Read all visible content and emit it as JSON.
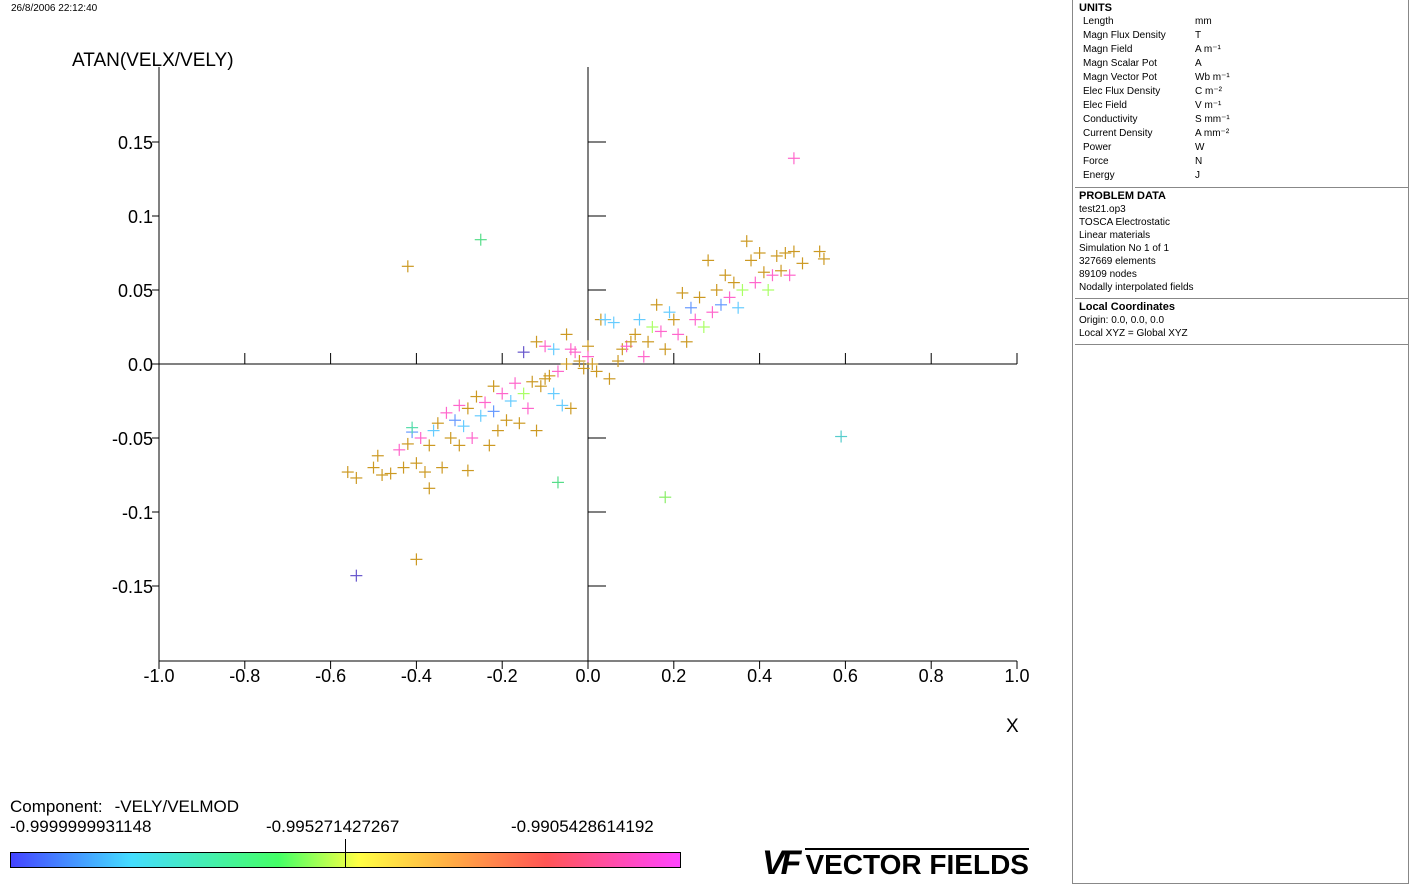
{
  "header": {
    "timestamp": "26/8/2006 22:12:40"
  },
  "chart_data": {
    "type": "scatter",
    "xlabel": "X",
    "ylabel": "ATAN(VELX/VELY)",
    "xlim": [
      -1.0,
      1.0
    ],
    "ylim": [
      -0.2,
      0.2
    ],
    "xticks": [
      "-1.0",
      "-0.8",
      "-0.6",
      "-0.4",
      "-0.2",
      "0.0",
      "0.2",
      "0.4",
      "0.6",
      "0.8",
      "1.0"
    ],
    "yticks": [
      "0.15",
      "0.1",
      "0.05",
      "0.0",
      "-0.05",
      "-0.1",
      "-0.15"
    ],
    "ytick_values": [
      0.15,
      0.1,
      0.05,
      0.0,
      -0.05,
      -0.1,
      -0.15
    ],
    "xtick_values": [
      -1.0,
      -0.8,
      -0.6,
      -0.4,
      -0.2,
      0.0,
      0.2,
      0.4,
      0.6,
      0.8,
      1.0
    ],
    "marker": "plus",
    "points": [
      {
        "x": -0.56,
        "y": -0.073,
        "c": "#cc9922"
      },
      {
        "x": -0.54,
        "y": -0.077,
        "c": "#cc9922"
      },
      {
        "x": -0.5,
        "y": -0.07,
        "c": "#cc9922"
      },
      {
        "x": -0.49,
        "y": -0.062,
        "c": "#cc9922"
      },
      {
        "x": -0.48,
        "y": -0.075,
        "c": "#cc9922"
      },
      {
        "x": -0.46,
        "y": -0.074,
        "c": "#cc9922"
      },
      {
        "x": -0.44,
        "y": -0.058,
        "c": "#ff66cc"
      },
      {
        "x": -0.43,
        "y": -0.07,
        "c": "#cc9922"
      },
      {
        "x": -0.42,
        "y": -0.054,
        "c": "#cc9922"
      },
      {
        "x": -0.41,
        "y": -0.046,
        "c": "#6699ff"
      },
      {
        "x": -0.41,
        "y": -0.043,
        "c": "#55ddaa"
      },
      {
        "x": -0.4,
        "y": -0.067,
        "c": "#cc9922"
      },
      {
        "x": -0.39,
        "y": -0.05,
        "c": "#ff66cc"
      },
      {
        "x": -0.38,
        "y": -0.073,
        "c": "#cc9922"
      },
      {
        "x": -0.37,
        "y": -0.084,
        "c": "#cc9922"
      },
      {
        "x": -0.37,
        "y": -0.055,
        "c": "#cc9922"
      },
      {
        "x": -0.36,
        "y": -0.045,
        "c": "#66ccff"
      },
      {
        "x": -0.35,
        "y": -0.04,
        "c": "#cc9922"
      },
      {
        "x": -0.34,
        "y": -0.07,
        "c": "#cc9922"
      },
      {
        "x": -0.33,
        "y": -0.033,
        "c": "#ff66cc"
      },
      {
        "x": -0.32,
        "y": -0.05,
        "c": "#cc9922"
      },
      {
        "x": -0.31,
        "y": -0.038,
        "c": "#6699ff"
      },
      {
        "x": -0.3,
        "y": -0.028,
        "c": "#ff66cc"
      },
      {
        "x": -0.3,
        "y": -0.055,
        "c": "#cc9922"
      },
      {
        "x": -0.29,
        "y": -0.042,
        "c": "#66ccff"
      },
      {
        "x": -0.28,
        "y": -0.072,
        "c": "#cc9922"
      },
      {
        "x": -0.28,
        "y": -0.03,
        "c": "#cc9922"
      },
      {
        "x": -0.27,
        "y": -0.05,
        "c": "#ff66cc"
      },
      {
        "x": -0.26,
        "y": -0.022,
        "c": "#cc9922"
      },
      {
        "x": -0.25,
        "y": -0.035,
        "c": "#66ccff"
      },
      {
        "x": -0.24,
        "y": -0.026,
        "c": "#ff66cc"
      },
      {
        "x": -0.23,
        "y": -0.055,
        "c": "#cc9922"
      },
      {
        "x": -0.22,
        "y": -0.015,
        "c": "#cc9922"
      },
      {
        "x": -0.22,
        "y": -0.032,
        "c": "#6699ff"
      },
      {
        "x": -0.21,
        "y": -0.045,
        "c": "#cc9922"
      },
      {
        "x": -0.2,
        "y": -0.02,
        "c": "#ff66cc"
      },
      {
        "x": -0.19,
        "y": -0.038,
        "c": "#cc9922"
      },
      {
        "x": -0.18,
        "y": -0.025,
        "c": "#66ccff"
      },
      {
        "x": -0.17,
        "y": -0.013,
        "c": "#ff66cc"
      },
      {
        "x": -0.16,
        "y": -0.04,
        "c": "#cc9922"
      },
      {
        "x": -0.15,
        "y": -0.02,
        "c": "#aaff66"
      },
      {
        "x": -0.14,
        "y": -0.03,
        "c": "#ff66cc"
      },
      {
        "x": -0.13,
        "y": -0.012,
        "c": "#cc9922"
      },
      {
        "x": -0.12,
        "y": -0.045,
        "c": "#cc9922"
      },
      {
        "x": -0.11,
        "y": -0.015,
        "c": "#cc9922"
      },
      {
        "x": -0.1,
        "y": -0.01,
        "c": "#cc9922"
      },
      {
        "x": -0.09,
        "y": -0.008,
        "c": "#cc9922"
      },
      {
        "x": -0.08,
        "y": -0.02,
        "c": "#66ccff"
      },
      {
        "x": -0.07,
        "y": -0.005,
        "c": "#ff66cc"
      },
      {
        "x": -0.06,
        "y": -0.028,
        "c": "#66ccff"
      },
      {
        "x": -0.05,
        "y": 0.0,
        "c": "#cc9922"
      },
      {
        "x": -0.04,
        "y": -0.03,
        "c": "#cc9922"
      },
      {
        "x": -0.03,
        "y": 0.008,
        "c": "#ff66cc"
      },
      {
        "x": -0.02,
        "y": 0.002,
        "c": "#cc9922"
      },
      {
        "x": -0.15,
        "y": 0.008,
        "c": "#6655cc"
      },
      {
        "x": -0.12,
        "y": 0.015,
        "c": "#cc9922"
      },
      {
        "x": -0.1,
        "y": 0.012,
        "c": "#ff66cc"
      },
      {
        "x": -0.08,
        "y": 0.01,
        "c": "#66ccff"
      },
      {
        "x": -0.05,
        "y": 0.02,
        "c": "#cc9922"
      },
      {
        "x": -0.04,
        "y": 0.01,
        "c": "#ff66cc"
      },
      {
        "x": 0.01,
        "y": 0.0,
        "c": "#cc9922"
      },
      {
        "x": 0.02,
        "y": -0.005,
        "c": "#cc9922"
      },
      {
        "x": 0.03,
        "y": 0.03,
        "c": "#cc9922"
      },
      {
        "x": 0.04,
        "y": 0.03,
        "c": "#66ccff"
      },
      {
        "x": 0.05,
        "y": -0.01,
        "c": "#cc9922"
      },
      {
        "x": 0.06,
        "y": 0.028,
        "c": "#66ccff"
      },
      {
        "x": 0.07,
        "y": 0.002,
        "c": "#cc9922"
      },
      {
        "x": 0.08,
        "y": 0.01,
        "c": "#cc9922"
      },
      {
        "x": 0.09,
        "y": 0.012,
        "c": "#ff66cc"
      },
      {
        "x": 0.1,
        "y": 0.015,
        "c": "#cc9922"
      },
      {
        "x": 0.11,
        "y": 0.02,
        "c": "#cc9922"
      },
      {
        "x": 0.12,
        "y": 0.03,
        "c": "#66ccff"
      },
      {
        "x": 0.13,
        "y": 0.005,
        "c": "#ff66cc"
      },
      {
        "x": 0.14,
        "y": 0.015,
        "c": "#cc9922"
      },
      {
        "x": 0.15,
        "y": 0.025,
        "c": "#aaff66"
      },
      {
        "x": 0.16,
        "y": 0.04,
        "c": "#cc9922"
      },
      {
        "x": 0.17,
        "y": 0.022,
        "c": "#ff66cc"
      },
      {
        "x": 0.18,
        "y": 0.01,
        "c": "#cc9922"
      },
      {
        "x": 0.19,
        "y": 0.035,
        "c": "#66ccff"
      },
      {
        "x": 0.2,
        "y": 0.03,
        "c": "#cc9922"
      },
      {
        "x": 0.21,
        "y": 0.02,
        "c": "#ff66cc"
      },
      {
        "x": 0.22,
        "y": 0.048,
        "c": "#cc9922"
      },
      {
        "x": 0.23,
        "y": 0.015,
        "c": "#cc9922"
      },
      {
        "x": 0.24,
        "y": 0.038,
        "c": "#6699ff"
      },
      {
        "x": 0.25,
        "y": 0.03,
        "c": "#ff66cc"
      },
      {
        "x": 0.26,
        "y": 0.045,
        "c": "#cc9922"
      },
      {
        "x": 0.27,
        "y": 0.025,
        "c": "#aaff66"
      },
      {
        "x": 0.28,
        "y": 0.07,
        "c": "#cc9922"
      },
      {
        "x": 0.29,
        "y": 0.035,
        "c": "#ff66cc"
      },
      {
        "x": 0.3,
        "y": 0.05,
        "c": "#cc9922"
      },
      {
        "x": 0.31,
        "y": 0.04,
        "c": "#6699ff"
      },
      {
        "x": 0.32,
        "y": 0.06,
        "c": "#cc9922"
      },
      {
        "x": 0.33,
        "y": 0.045,
        "c": "#ff66cc"
      },
      {
        "x": 0.34,
        "y": 0.055,
        "c": "#cc9922"
      },
      {
        "x": 0.35,
        "y": 0.038,
        "c": "#66ccff"
      },
      {
        "x": 0.36,
        "y": 0.05,
        "c": "#aaff66"
      },
      {
        "x": 0.37,
        "y": 0.083,
        "c": "#cc9922"
      },
      {
        "x": 0.38,
        "y": 0.07,
        "c": "#cc9922"
      },
      {
        "x": 0.39,
        "y": 0.055,
        "c": "#ff66cc"
      },
      {
        "x": 0.4,
        "y": 0.075,
        "c": "#cc9922"
      },
      {
        "x": 0.41,
        "y": 0.062,
        "c": "#cc9922"
      },
      {
        "x": 0.42,
        "y": 0.05,
        "c": "#aaff66"
      },
      {
        "x": 0.43,
        "y": 0.06,
        "c": "#ff66cc"
      },
      {
        "x": 0.44,
        "y": 0.073,
        "c": "#cc9922"
      },
      {
        "x": 0.45,
        "y": 0.063,
        "c": "#cc9922"
      },
      {
        "x": 0.46,
        "y": 0.075,
        "c": "#cc9922"
      },
      {
        "x": 0.47,
        "y": 0.06,
        "c": "#ff66cc"
      },
      {
        "x": 0.48,
        "y": 0.076,
        "c": "#cc9922"
      },
      {
        "x": 0.5,
        "y": 0.068,
        "c": "#cc9922"
      },
      {
        "x": 0.54,
        "y": 0.076,
        "c": "#cc9922"
      },
      {
        "x": 0.55,
        "y": 0.071,
        "c": "#cc9922"
      },
      {
        "x": 0.0,
        "y": 0.012,
        "c": "#cc9922"
      },
      {
        "x": 0.0,
        "y": 0.005,
        "c": "#ff66cc"
      },
      {
        "x": -0.01,
        "y": -0.003,
        "c": "#cc9922"
      },
      {
        "x": -0.42,
        "y": 0.066,
        "c": "#cc9922"
      },
      {
        "x": -0.25,
        "y": 0.084,
        "c": "#55dd88"
      },
      {
        "x": 0.48,
        "y": 0.139,
        "c": "#ff66cc"
      },
      {
        "x": 0.59,
        "y": -0.049,
        "c": "#55cccc"
      },
      {
        "x": -0.07,
        "y": -0.08,
        "c": "#55dd88"
      },
      {
        "x": 0.18,
        "y": -0.09,
        "c": "#88ee66"
      },
      {
        "x": -0.4,
        "y": -0.132,
        "c": "#cc9922"
      },
      {
        "x": -0.54,
        "y": -0.143,
        "c": "#6655cc"
      }
    ]
  },
  "units": {
    "title": "UNITS",
    "rows": [
      {
        "name": "Length",
        "value": "mm"
      },
      {
        "name": "Magn Flux Density",
        "value": "T"
      },
      {
        "name": "Magn Field",
        "value": "A m⁻¹"
      },
      {
        "name": "Magn Scalar Pot",
        "value": "A"
      },
      {
        "name": "Magn Vector Pot",
        "value": "Wb m⁻¹"
      },
      {
        "name": "Elec Flux Density",
        "value": "C m⁻²"
      },
      {
        "name": "Elec Field",
        "value": "V m⁻¹"
      },
      {
        "name": "Conductivity",
        "value": "S mm⁻¹"
      },
      {
        "name": "Current Density",
        "value": "A mm⁻²"
      },
      {
        "name": "Power",
        "value": "W"
      },
      {
        "name": "Force",
        "value": "N"
      },
      {
        "name": "Energy",
        "value": "J"
      }
    ]
  },
  "problem_data": {
    "title": "PROBLEM DATA",
    "lines": [
      "test21.op3",
      "TOSCA Electrostatic",
      "Linear materials",
      "Simulation No 1 of 1",
      "327669 elements",
      "89109 nodes",
      "Nodally interpolated fields"
    ]
  },
  "local_coords": {
    "title": "Local Coordinates",
    "lines": [
      "Origin: 0.0, 0.0, 0.0",
      "Local XYZ = Global XYZ"
    ]
  },
  "legend": {
    "component_label": "Component:",
    "component_name": "-VELY/VELMOD",
    "min_value": "-0.9999999931148",
    "mid_value": "-0.995271427267",
    "max_value": "-0.9905428614192"
  },
  "logo": {
    "mark": "VF",
    "text": "VECTOR FIELDS"
  }
}
